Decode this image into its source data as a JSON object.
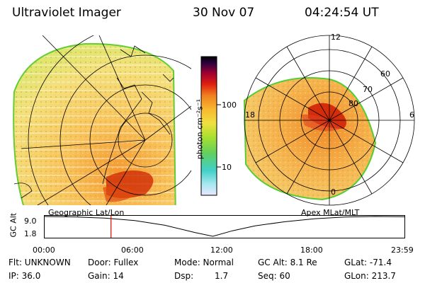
{
  "header": {
    "instrument": "Ultraviolet Imager",
    "date": "30 Nov 07",
    "time": "04:24:54 UT"
  },
  "colorbar": {
    "unit_label": "photon cm⁻²s⁻¹",
    "ticks": [
      "100",
      "10"
    ]
  },
  "panels": {
    "left_label": "Geographic Lat/Lon",
    "right_label": "Apex  MLat/MLT"
  },
  "polar_grid": {
    "mlt_labels": [
      "12",
      "18",
      "6",
      "0"
    ],
    "lat_labels": [
      "60",
      "70",
      "80"
    ]
  },
  "orbit_plot": {
    "ylabel": "GC Alt",
    "ymax": "9.0",
    "ymin": "1.8",
    "x_ticks": [
      "00:00",
      "06:00",
      "12:00",
      "18:00",
      "23:59"
    ],
    "marker_time_hours": 4.42,
    "orbit_points": [
      [
        0,
        9.0
      ],
      [
        2,
        8.85
      ],
      [
        4,
        8.4
      ],
      [
        6,
        7.5
      ],
      [
        8,
        5.8
      ],
      [
        10,
        3.2
      ],
      [
        11.2,
        1.8
      ],
      [
        12.5,
        3.8
      ],
      [
        14,
        5.6
      ],
      [
        16,
        7.1
      ],
      [
        18,
        8.2
      ],
      [
        20,
        8.8
      ],
      [
        22,
        9.0
      ],
      [
        23.98,
        8.9
      ]
    ]
  },
  "info": {
    "flt": "Flt: UNKNOWN",
    "door": "Door: Fullex",
    "mode": "Mode: Normal",
    "gc_alt": "GC Alt: 8.1 Re",
    "glat": "GLat: -71.4",
    "ip": "IP: 36.0",
    "gain": "Gain: 14",
    "dsp_label": "Dsp:",
    "dsp_value": "1.7",
    "seq": "Seq: 60",
    "glon": "GLon: 213.7"
  },
  "colors": {
    "aurora_red": "#cc1100",
    "marker": "#dd0000",
    "image_rim": "#33cc33"
  }
}
